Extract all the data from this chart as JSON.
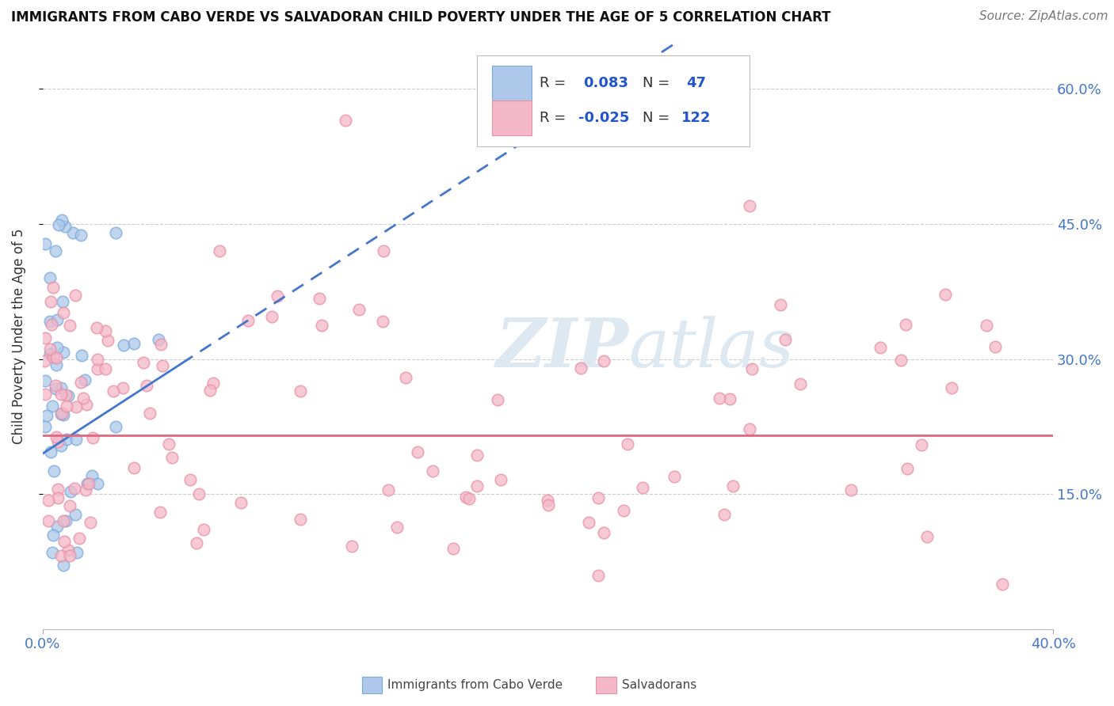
{
  "title": "IMMIGRANTS FROM CABO VERDE VS SALVADORAN CHILD POVERTY UNDER THE AGE OF 5 CORRELATION CHART",
  "source": "Source: ZipAtlas.com",
  "ylabel": "Child Poverty Under the Age of 5",
  "xlim": [
    0.0,
    0.4
  ],
  "ylim": [
    0.0,
    0.65
  ],
  "yticks": [
    0.15,
    0.3,
    0.45,
    0.6
  ],
  "ytick_labels": [
    "15.0%",
    "30.0%",
    "45.0%",
    "60.0%"
  ],
  "grid_color": "#cccccc",
  "background_color": "#ffffff",
  "cabo_verde_color": "#adc8e8",
  "cabo_verde_edge": "#7aabe0",
  "salvadoran_color": "#f5b8c8",
  "salvadoran_edge": "#e890a8",
  "cabo_verde_R": 0.083,
  "cabo_verde_N": 47,
  "salvadoran_R": -0.025,
  "salvadoran_N": 122,
  "cabo_verde_trend_color": "#4477cc",
  "salvadoran_trend_color": "#e06880",
  "cabo_verde_trend_start_y": 0.195,
  "cabo_verde_trend_end_y": 0.295,
  "cabo_verde_trend_end_x": 0.055,
  "salvadoran_trend_start_y": 0.215,
  "salvadoran_trend_end_y": 0.215,
  "title_fontsize": 12,
  "source_fontsize": 11,
  "tick_fontsize": 13,
  "ylabel_fontsize": 12,
  "legend_text_color": "#333333",
  "legend_value_color": "#2255cc",
  "watermark_color": "#dde8f0",
  "scatter_size": 110,
  "scatter_alpha": 0.75,
  "scatter_linewidth": 1.2
}
